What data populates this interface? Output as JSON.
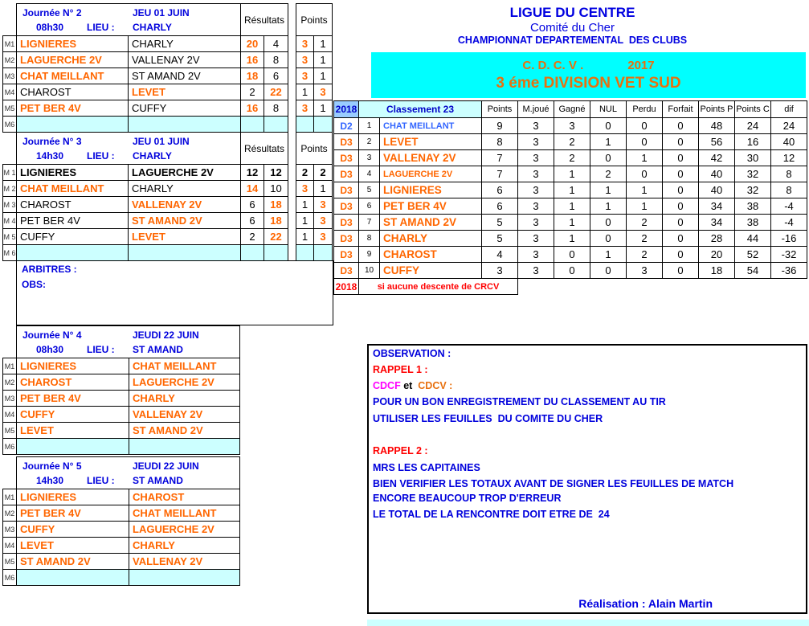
{
  "titles": {
    "ligue": "LIGUE DU CENTRE",
    "comite": "Comité du Cher",
    "championnat": "CHAMPIONNAT DEPARTEMENTAL  DES CLUBS"
  },
  "banner": {
    "cdcv": "C. D. C. V .",
    "year": "2017",
    "division": "3 éme DIVISION VET SUD",
    "bg_color": "#00FFFF",
    "text_color": "#E8700E"
  },
  "journees": [
    {
      "title": "Journée N° 2",
      "date": "JEU 01 JUIN",
      "time": "08h30",
      "lieu_label": "LIEU :",
      "lieu": "CHARLY",
      "results_label": "Résultats",
      "points_label": "Points",
      "rows": [
        {
          "m": "M1",
          "home": "LIGNIERES",
          "away": "CHARLY",
          "r1": "20",
          "r2": "4",
          "p1": "3",
          "p2": "1",
          "hs": "w",
          "as": "l"
        },
        {
          "m": "M2",
          "home": "LAGUERCHE 2V",
          "away": "VALLENAY 2V",
          "r1": "16",
          "r2": "8",
          "p1": "3",
          "p2": "1",
          "hs": "w",
          "as": "l"
        },
        {
          "m": "M3",
          "home": "CHAT MEILLANT",
          "away": "ST AMAND 2V",
          "r1": "18",
          "r2": "6",
          "p1": "3",
          "p2": "1",
          "hs": "w",
          "as": "l"
        },
        {
          "m": "M4",
          "home": "CHAROST",
          "away": "LEVET",
          "r1": "2",
          "r2": "22",
          "p1": "1",
          "p2": "3",
          "hs": "l",
          "as": "w"
        },
        {
          "m": "M5",
          "home": "PET BER 4V",
          "away": "CUFFY",
          "r1": "16",
          "r2": "8",
          "p1": "3",
          "p2": "1",
          "hs": "w",
          "as": "l"
        },
        {
          "m": "M6",
          "empty": true
        }
      ]
    },
    {
      "title": "Journée N° 3",
      "date": "JEU 01 JUIN",
      "time": "14h30",
      "lieu_label": "LIEU :",
      "lieu": "CHARLY",
      "results_label": "Résultats",
      "points_label": "Points",
      "rows": [
        {
          "m": "M 1",
          "home": "LIGNIERES",
          "away": "LAGUERCHE 2V",
          "r1": "12",
          "r2": "12",
          "p1": "2",
          "p2": "2",
          "hs": "d",
          "as": "d"
        },
        {
          "m": "M 2",
          "home": "CHAT MEILLANT",
          "away": "CHARLY",
          "r1": "14",
          "r2": "10",
          "p1": "3",
          "p2": "1",
          "hs": "w",
          "as": "l"
        },
        {
          "m": "M 3",
          "home": "CHAROST",
          "away": "VALLENAY 2V",
          "r1": "6",
          "r2": "18",
          "p1": "1",
          "p2": "3",
          "hs": "l",
          "as": "w"
        },
        {
          "m": "M 4",
          "home": "PET BER 4V",
          "away": "ST AMAND 2V",
          "r1": "6",
          "r2": "18",
          "p1": "1",
          "p2": "3",
          "hs": "l",
          "as": "w"
        },
        {
          "m": "M 5",
          "home": "CUFFY",
          "away": "LEVET",
          "r1": "2",
          "r2": "22",
          "p1": "1",
          "p2": "3",
          "hs": "l",
          "as": "w"
        },
        {
          "m": "M 6",
          "empty": true
        }
      ]
    },
    {
      "title": "Journée N° 4",
      "date": "JEUDI 22 JUIN",
      "time": "08h30",
      "lieu_label": "LIEU :",
      "lieu": "ST AMAND",
      "rows": [
        {
          "m": "M1",
          "home": "LIGNIERES",
          "away": "CHAT MEILLANT",
          "hs": "w",
          "as": "w"
        },
        {
          "m": "M2",
          "home": "CHAROST",
          "away": "LAGUERCHE 2V",
          "hs": "w",
          "as": "w"
        },
        {
          "m": "M3",
          "home": "PET BER 4V",
          "away": "CHARLY",
          "hs": "w",
          "as": "w"
        },
        {
          "m": "M4",
          "home": "CUFFY",
          "away": "VALLENAY 2V",
          "hs": "w",
          "as": "w"
        },
        {
          "m": "M5",
          "home": "LEVET",
          "away": "ST AMAND 2V",
          "hs": "w",
          "as": "w"
        },
        {
          "m": "M6",
          "empty": true
        }
      ]
    },
    {
      "title": "Journée N° 5",
      "date": "JEUDI 22 JUIN",
      "time": "14h30",
      "lieu_label": "LIEU :",
      "lieu": "ST AMAND",
      "rows": [
        {
          "m": "M1",
          "home": "LIGNIERES",
          "away": "CHAROST",
          "hs": "w",
          "as": "w"
        },
        {
          "m": "M2",
          "home": "PET BER 4V",
          "away": "CHAT MEILLANT",
          "hs": "w",
          "as": "w"
        },
        {
          "m": "M3",
          "home": "CUFFY",
          "away": "LAGUERCHE 2V",
          "hs": "w",
          "as": "w"
        },
        {
          "m": "M4",
          "home": "LEVET",
          "away": "CHARLY",
          "hs": "w",
          "as": "w"
        },
        {
          "m": "M5",
          "home": "ST AMAND 2V",
          "away": "VALLENAY 2V",
          "hs": "w",
          "as": "w"
        },
        {
          "m": "M6",
          "empty": true
        }
      ]
    }
  ],
  "arbitres": {
    "label": "ARBITRES :",
    "obs_label": "OBS:"
  },
  "classement": {
    "year": "2018",
    "title": "Classement 23",
    "columns": [
      "Points",
      "M.joué",
      "Gagné",
      "NUL",
      "Perdu",
      "Forfait",
      "Points P",
      "Points C",
      "dif"
    ],
    "rows": [
      {
        "div": "D2",
        "rank": "1",
        "team": "CHAT MEILLANT",
        "blue": true,
        "stats": [
          9,
          3,
          3,
          0,
          0,
          0,
          48,
          24,
          24
        ]
      },
      {
        "div": "D3",
        "rank": "2",
        "team": "LEVET",
        "stats": [
          8,
          3,
          2,
          1,
          0,
          0,
          56,
          16,
          40
        ]
      },
      {
        "div": "D3",
        "rank": "3",
        "team": "VALLENAY 2V",
        "stats": [
          7,
          3,
          2,
          0,
          1,
          0,
          42,
          30,
          12
        ]
      },
      {
        "div": "D3",
        "rank": "4",
        "team": "LAGUERCHE 2V",
        "stats": [
          7,
          3,
          1,
          2,
          0,
          0,
          40,
          32,
          8
        ]
      },
      {
        "div": "D3",
        "rank": "5",
        "team": "LIGNIERES",
        "stats": [
          6,
          3,
          1,
          1,
          1,
          0,
          40,
          32,
          8
        ]
      },
      {
        "div": "D3",
        "rank": "6",
        "team": "PET BER 4V",
        "stats": [
          6,
          3,
          1,
          1,
          1,
          0,
          34,
          38,
          -4
        ]
      },
      {
        "div": "D3",
        "rank": "7",
        "team": "ST AMAND 2V",
        "stats": [
          5,
          3,
          1,
          0,
          2,
          0,
          34,
          38,
          -4
        ]
      },
      {
        "div": "D3",
        "rank": "8",
        "team": "CHARLY",
        "stats": [
          5,
          3,
          1,
          0,
          2,
          0,
          28,
          44,
          -16
        ]
      },
      {
        "div": "D3",
        "rank": "9",
        "team": "CHAROST",
        "stats": [
          4,
          3,
          0,
          1,
          2,
          0,
          20,
          52,
          -32
        ]
      },
      {
        "div": "D3",
        "rank": "10",
        "team": "CUFFY",
        "stats": [
          3,
          3,
          0,
          0,
          3,
          0,
          18,
          54,
          -36
        ]
      }
    ],
    "footer_year": "2018",
    "footer_note": "si aucune descente de CRCV"
  },
  "observation": {
    "title": "OBSERVATION :",
    "rappel1": "RAPPEL 1 :",
    "cdcf": "CDCF",
    "et": " et  ",
    "cdcv": "CDCV :",
    "line1": "POUR UN BON ENREGISTREMENT DU CLASSEMENT AU TIR",
    "line2": "UTILISER LES FEUILLES  DU COMITE DU CHER",
    "rappel2": "RAPPEL 2 :",
    "line3": "MRS LES CAPITAINES",
    "line4": "BIEN VERIFIER LES TOTAUX AVANT DE SIGNER LES FEUILLES DE MATCH",
    "line5": "ENCORE BEAUCOUP TROP D'ERREUR",
    "line6": "LE TOTAL DE LA RENCONTRE DOIT ETRE DE  24",
    "realisation": "Réalisation : Alain Martin"
  },
  "colors": {
    "header_blue": "#0000E0",
    "team_orange": "#FF6600",
    "team_blue": "#3366FF",
    "red": "#FF0000",
    "magenta": "#FF00FF",
    "banner_cyan": "#00FFFF",
    "light_cyan": "#CCFFFF",
    "light_blue": "#99CCFF"
  }
}
